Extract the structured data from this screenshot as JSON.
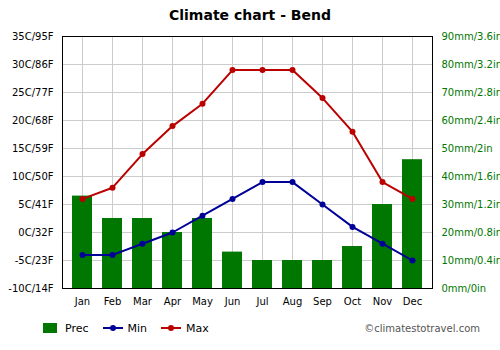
{
  "chart_data": {
    "type": "combo",
    "title": "Climate chart - Bend",
    "categories": [
      "Jan",
      "Feb",
      "Mar",
      "Apr",
      "May",
      "Jun",
      "Jul",
      "Aug",
      "Sep",
      "Oct",
      "Nov",
      "Dec"
    ],
    "series": [
      {
        "name": "Prec",
        "type": "bar",
        "axis": "y2",
        "color": "#007700",
        "values": [
          33,
          25,
          25,
          20,
          25,
          13,
          10,
          10,
          10,
          15,
          30,
          46
        ]
      },
      {
        "name": "Min",
        "type": "line",
        "marker": "circle",
        "color": "#000099",
        "values": [
          -4,
          -4,
          -2,
          0,
          3,
          6,
          9,
          9,
          5,
          1,
          -2,
          -5
        ]
      },
      {
        "name": "Max",
        "type": "line",
        "marker": "circle",
        "color": "#bb0000",
        "values": [
          6,
          8,
          14,
          19,
          23,
          29,
          29,
          29,
          24,
          18,
          9,
          6
        ]
      }
    ],
    "ylim": [
      -10,
      35
    ],
    "yticks": [
      {
        "value": -10,
        "label": "-10C/14F"
      },
      {
        "value": -5,
        "label": "-5C/23F"
      },
      {
        "value": 0,
        "label": "0C/32F"
      },
      {
        "value": 5,
        "label": "5C/41F"
      },
      {
        "value": 10,
        "label": "10C/50F"
      },
      {
        "value": 15,
        "label": "15C/59F"
      },
      {
        "value": 20,
        "label": "20C/68F"
      },
      {
        "value": 25,
        "label": "25C/77F"
      },
      {
        "value": 30,
        "label": "30C/86F"
      },
      {
        "value": 35,
        "label": "35C/95F"
      }
    ],
    "y2lim": [
      0,
      90
    ],
    "y2ticks": [
      {
        "value": 0,
        "label": "0mm/0in"
      },
      {
        "value": 10,
        "label": "10mm/0.4in"
      },
      {
        "value": 20,
        "label": "20mm/0.8in"
      },
      {
        "value": 30,
        "label": "30mm/1.2in"
      },
      {
        "value": 40,
        "label": "40mm/1.6in"
      },
      {
        "value": 50,
        "label": "50mm/2in"
      },
      {
        "value": 60,
        "label": "60mm/2.4in"
      },
      {
        "value": 70,
        "label": "70mm/2.8in"
      },
      {
        "value": 80,
        "label": "80mm/3.2in"
      },
      {
        "value": 90,
        "label": "90mm/3.6in"
      }
    ],
    "grid": true,
    "legend": "bottom",
    "annotations": [
      "©climatestotravel.com"
    ]
  }
}
